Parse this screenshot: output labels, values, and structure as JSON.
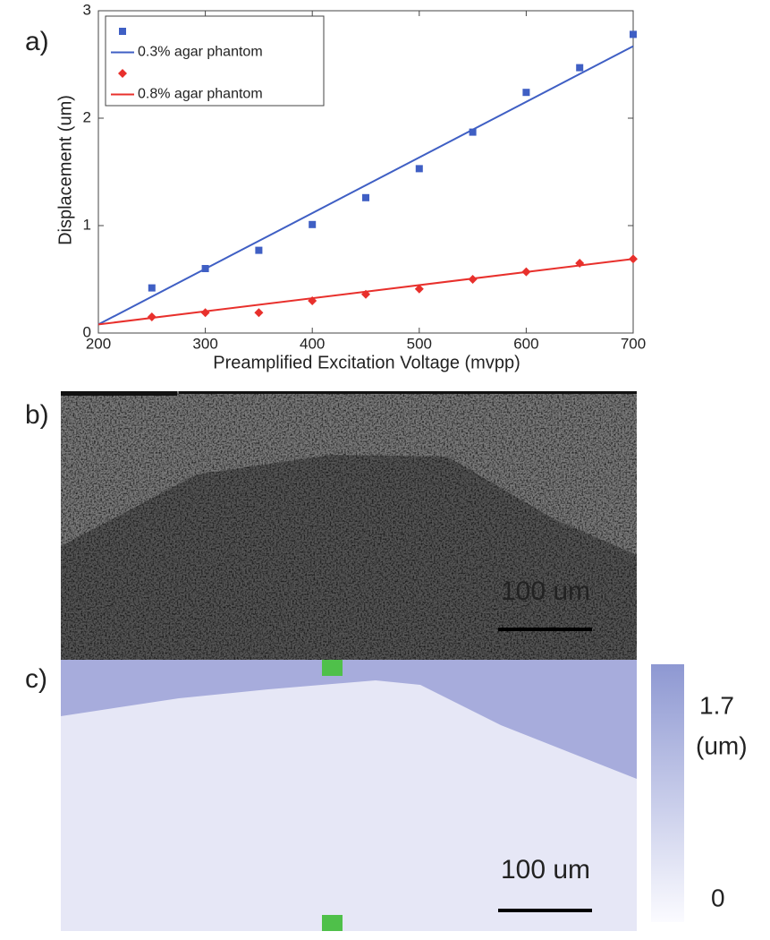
{
  "chart_data": {
    "type": "scatter",
    "xlabel": "Preamplified Excitation Voltage (mvpp)",
    "ylabel": "Displacement (um)",
    "xlim": [
      200,
      700
    ],
    "xticks": [
      200,
      300,
      400,
      500,
      600,
      700
    ],
    "ylim": [
      0,
      3
    ],
    "yticks": [
      0,
      1,
      2,
      3
    ],
    "legend": "upper left",
    "series": [
      {
        "style": "markers",
        "marker": "square",
        "color": "#3f5fc4",
        "x": [
          250,
          300,
          350,
          400,
          450,
          500,
          550,
          600,
          650,
          700
        ],
        "values": [
          0.42,
          0.6,
          0.77,
          1.01,
          1.26,
          1.53,
          1.87,
          2.24,
          2.47,
          2.78
        ]
      },
      {
        "name": "0.3% agar phantom",
        "style": "line",
        "color": "#3f5fc4",
        "x": [
          200,
          700
        ],
        "values": [
          0.08,
          2.67
        ]
      },
      {
        "style": "markers",
        "marker": "diamond",
        "color": "#e8302c",
        "x": [
          250,
          300,
          350,
          400,
          450,
          500,
          550,
          600,
          650,
          700
        ],
        "values": [
          0.15,
          0.19,
          0.19,
          0.3,
          0.36,
          0.41,
          0.5,
          0.57,
          0.65,
          0.69
        ]
      },
      {
        "name": "0.8% agar phantom",
        "style": "line",
        "color": "#e8302c",
        "x": [
          200,
          700
        ],
        "values": [
          0.08,
          0.69
        ]
      }
    ]
  },
  "panel_labels": [
    "a)",
    "b)",
    "c)"
  ],
  "image_b": {
    "scale_bar": "100 um"
  },
  "image_c": {
    "scale_bar": "100 um",
    "colorbar": {
      "max": "1.7",
      "unit": "(um)",
      "min": "0"
    }
  }
}
